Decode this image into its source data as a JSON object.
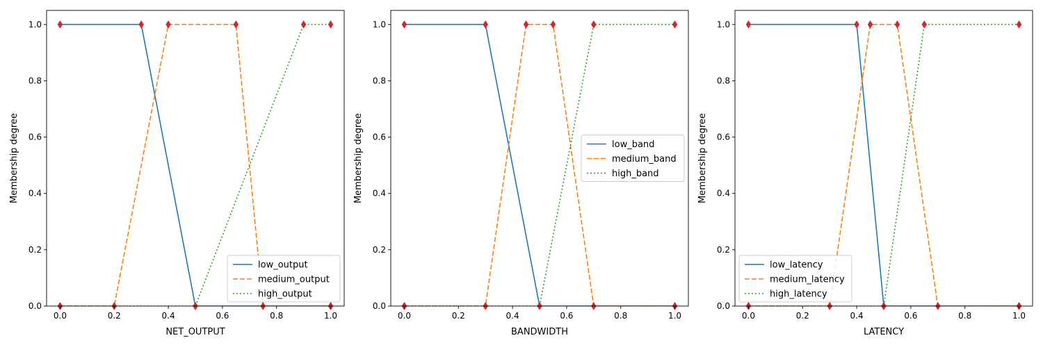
{
  "chart_data": [
    {
      "type": "line",
      "xlabel": "NET_OUTPUT",
      "ylabel": "Membership degree",
      "xlim": [
        -0.05,
        1.05
      ],
      "ylim": [
        0,
        1.05
      ],
      "xticks": [
        "0.0",
        "0.2",
        "0.4",
        "0.6",
        "0.8",
        "1.0"
      ],
      "yticks": [
        "0.0",
        "0.2",
        "0.4",
        "0.6",
        "0.8",
        "1.0"
      ],
      "legend_position": "lower right",
      "series": [
        {
          "name": "low_output",
          "color": "#1f77b4",
          "style": "solid",
          "points": [
            [
              0,
              1
            ],
            [
              0.3,
              1
            ],
            [
              0.5,
              0
            ],
            [
              1.0,
              0
            ]
          ]
        },
        {
          "name": "medium_output",
          "color": "#ff7f0e",
          "style": "dashed",
          "points": [
            [
              0,
              0
            ],
            [
              0.2,
              0
            ],
            [
              0.4,
              1
            ],
            [
              0.65,
              1
            ],
            [
              0.75,
              0
            ],
            [
              1.0,
              0
            ]
          ]
        },
        {
          "name": "high_output",
          "color": "#2ca02c",
          "style": "dotted",
          "points": [
            [
              0,
              0
            ],
            [
              0.5,
              0
            ],
            [
              0.9,
              1
            ],
            [
              1.0,
              1
            ]
          ]
        }
      ]
    },
    {
      "type": "line",
      "xlabel": "BANDWIDTH",
      "ylabel": "Membership degree",
      "xlim": [
        -0.05,
        1.05
      ],
      "ylim": [
        0,
        1.05
      ],
      "xticks": [
        "0.0",
        "0.2",
        "0.4",
        "0.6",
        "0.8",
        "1.0"
      ],
      "yticks": [
        "0.0",
        "0.2",
        "0.4",
        "0.6",
        "0.8",
        "1.0"
      ],
      "legend_position": "center right",
      "series": [
        {
          "name": "low_band",
          "color": "#1f77b4",
          "style": "solid",
          "points": [
            [
              0,
              1
            ],
            [
              0.3,
              1
            ],
            [
              0.5,
              0
            ],
            [
              1.0,
              0
            ]
          ]
        },
        {
          "name": "medium_band",
          "color": "#ff7f0e",
          "style": "dashed",
          "points": [
            [
              0,
              0
            ],
            [
              0.3,
              0
            ],
            [
              0.45,
              1
            ],
            [
              0.55,
              1
            ],
            [
              0.7,
              0
            ],
            [
              1.0,
              0
            ]
          ]
        },
        {
          "name": "high_band",
          "color": "#2ca02c",
          "style": "dotted",
          "points": [
            [
              0,
              0
            ],
            [
              0.5,
              0
            ],
            [
              0.7,
              1
            ],
            [
              1.0,
              1
            ]
          ]
        }
      ]
    },
    {
      "type": "line",
      "xlabel": "LATENCY",
      "ylabel": "Membership degree",
      "xlim": [
        -0.05,
        1.05
      ],
      "ylim": [
        0,
        1.05
      ],
      "xticks": [
        "0.0",
        "0.2",
        "0.4",
        "0.6",
        "0.8",
        "1.0"
      ],
      "yticks": [
        "0.0",
        "0.2",
        "0.4",
        "0.6",
        "0.8",
        "1.0"
      ],
      "legend_position": "lower left",
      "series": [
        {
          "name": "low_latency",
          "color": "#1f77b4",
          "style": "solid",
          "points": [
            [
              0,
              1
            ],
            [
              0.4,
              1
            ],
            [
              0.5,
              0
            ],
            [
              1.0,
              0
            ]
          ]
        },
        {
          "name": "medium_latency",
          "color": "#ff7f0e",
          "style": "dashed",
          "points": [
            [
              0,
              0
            ],
            [
              0.3,
              0
            ],
            [
              0.45,
              1
            ],
            [
              0.55,
              1
            ],
            [
              0.7,
              0
            ],
            [
              1.0,
              0
            ]
          ]
        },
        {
          "name": "high_latency",
          "color": "#2ca02c",
          "style": "dotted",
          "points": [
            [
              0,
              0
            ],
            [
              0.5,
              0
            ],
            [
              0.65,
              1
            ],
            [
              1.0,
              1
            ]
          ]
        }
      ]
    }
  ],
  "marker_color": "#d62728"
}
